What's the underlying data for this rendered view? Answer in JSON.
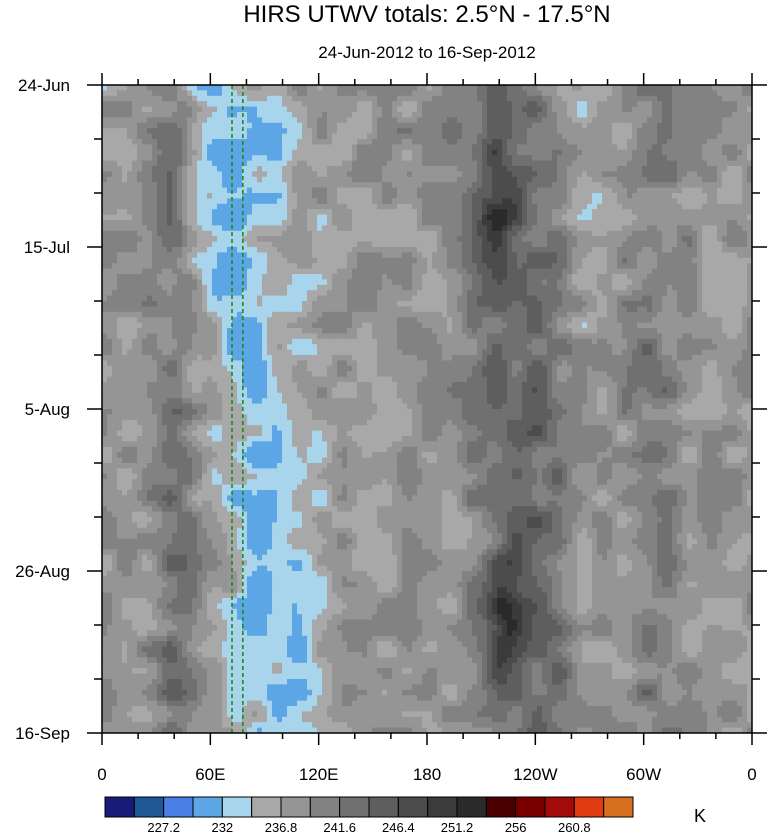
{
  "chart_data": {
    "type": "heatmap",
    "title": "HIRS UTWV totals: 2.5°N - 17.5°N",
    "subtitle": "24-Jun-2012 to 16-Sep-2012",
    "x_tick_labels": [
      "0",
      "60E",
      "120E",
      "180",
      "120W",
      "60W",
      "0"
    ],
    "x_ticks_deg": [
      0,
      60,
      120,
      180,
      240,
      300,
      360
    ],
    "xlim": [
      0,
      360
    ],
    "y_tick_labels": [
      "24-Jun",
      "15-Jul",
      "5-Aug",
      "26-Aug",
      "16-Sep"
    ],
    "y_ticks_day": [
      0,
      21,
      42,
      63,
      84
    ],
    "ylim": [
      0,
      84
    ],
    "reference_lines_deg": [
      72,
      78
    ],
    "colorbar": {
      "unit": "K",
      "colors": [
        "#1a1a7a",
        "#1e5796",
        "#4a7fe6",
        "#5ca6e6",
        "#a8d4ec",
        "#a8a8a8",
        "#959595",
        "#828282",
        "#707070",
        "#5e5e5e",
        "#4c4c4c",
        "#3b3b3b",
        "#2a2a2a",
        "#4a0000",
        "#7a0000",
        "#a30a0a",
        "#e03a10",
        "#d67020"
      ],
      "labels": [
        "227.2",
        "232",
        "236.8",
        "241.6",
        "246.4",
        "251.2",
        "256",
        "260.8"
      ],
      "label_after_box": [
        2,
        4,
        6,
        8,
        10,
        12,
        14,
        16
      ]
    }
  }
}
